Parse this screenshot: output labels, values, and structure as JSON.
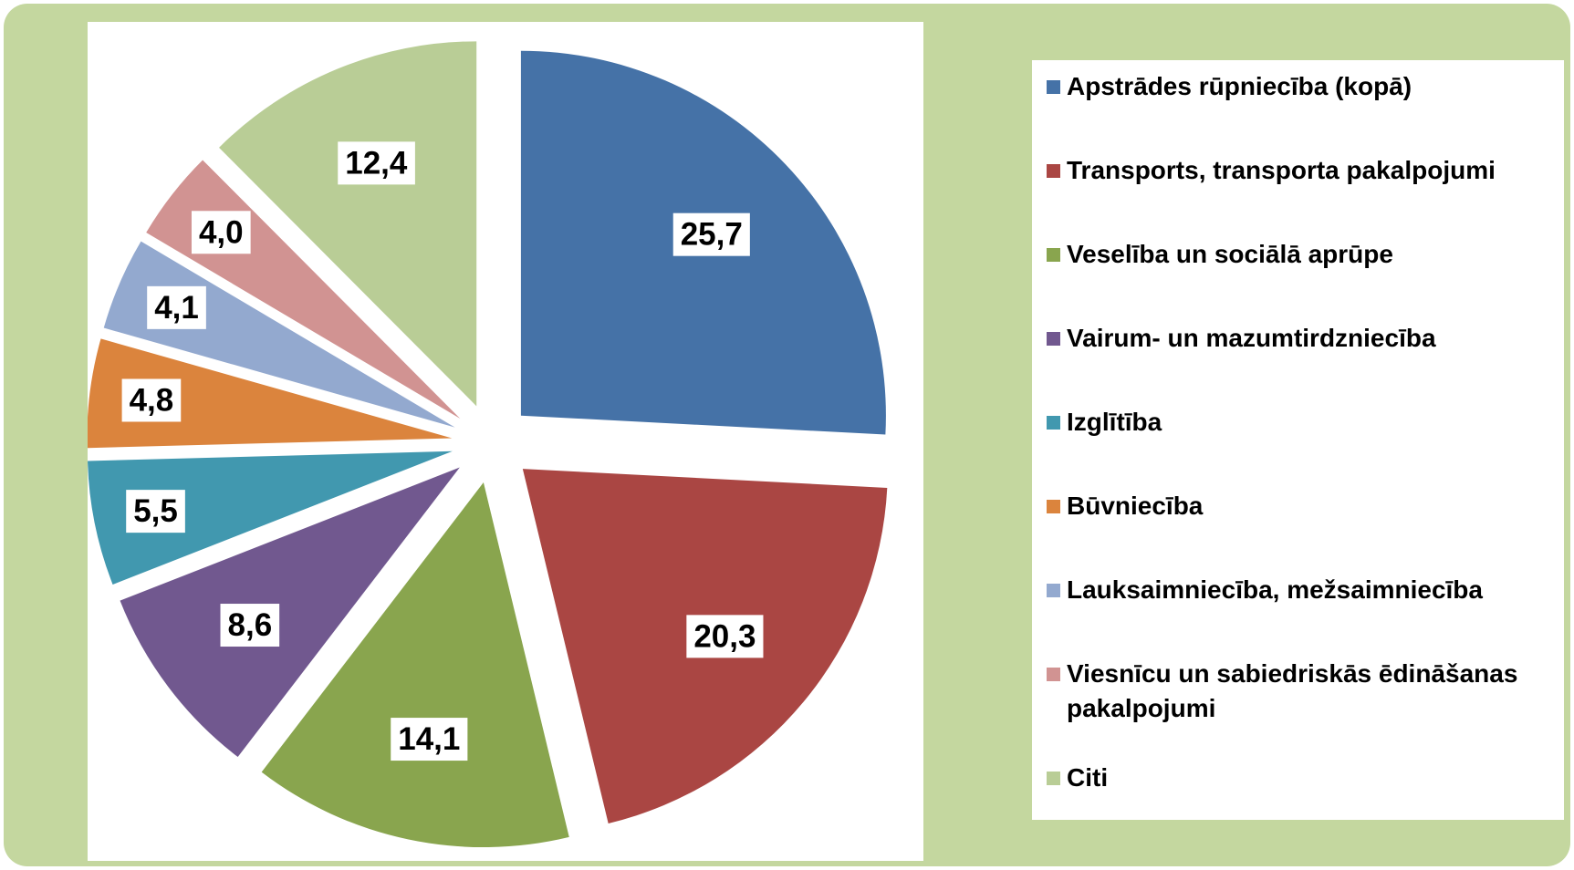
{
  "chart_data": {
    "type": "pie",
    "categories": [
      "Apstrādes rūpniecība (kopā)",
      "Transports, transporta pakalpojumi",
      "Veselība un sociālā aprūpe",
      "Vairum- un mazumtirdzniecība",
      "Izglītība",
      "Būvniecība",
      "Lauksaimniecība, mežsaimniecība",
      "Viesnīcu un sabiedriskās ēdināšanas pakalpojumi",
      "Citi"
    ],
    "values": [
      25.7,
      20.3,
      14.1,
      8.6,
      5.5,
      4.8,
      4.1,
      4.0,
      12.4
    ],
    "value_labels": [
      "25,7",
      "20,3",
      "14,1",
      "8,6",
      "5,5",
      "4,8",
      "4,1",
      "4,0",
      "12,4"
    ],
    "colors": [
      "#4572a7",
      "#aa4643",
      "#89a54e",
      "#71588f",
      "#4198af",
      "#db843d",
      "#93a9cf",
      "#d19392",
      "#b9cd96"
    ]
  }
}
